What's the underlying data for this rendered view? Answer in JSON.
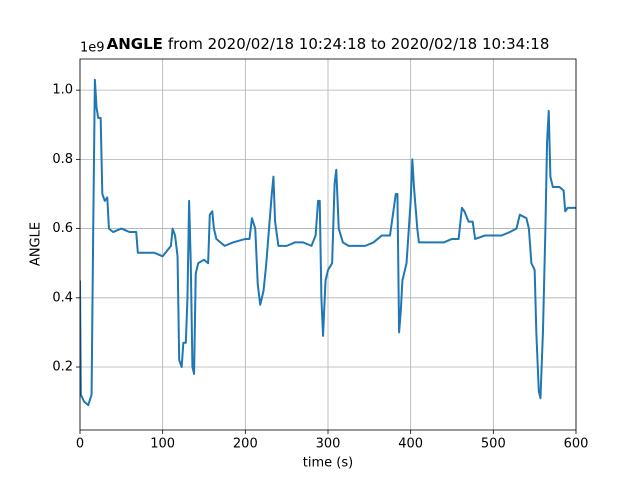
{
  "chart_data": {
    "type": "line",
    "title": {
      "variable": "ANGLE",
      "range": "from 2020/02/18 10:24:18 to 2020/02/18 10:34:18"
    },
    "xlabel": "time (s)",
    "ylabel": "ANGLE",
    "y_offset_label": "1e9",
    "color": "#1f77b4",
    "grid": true,
    "xlim": [
      0,
      600
    ],
    "xticks": [
      0,
      100,
      200,
      300,
      400,
      500,
      600
    ],
    "ylim": [
      0.018,
      1.09
    ],
    "yticks": [
      0.2,
      0.4,
      0.6,
      0.8,
      {
        "value": 1,
        "label": "1.0"
      }
    ],
    "x": [
      0,
      1,
      5,
      10,
      14,
      16,
      18,
      20,
      22,
      25,
      27,
      30,
      33,
      35,
      40,
      50,
      60,
      68,
      70,
      80,
      90,
      100,
      110,
      112,
      115,
      118,
      120,
      123,
      125,
      128,
      130,
      132,
      134,
      136,
      138,
      140,
      143,
      150,
      155,
      157,
      160,
      162,
      165,
      175,
      185,
      200,
      205,
      208,
      212,
      215,
      218,
      222,
      225,
      228,
      232,
      234,
      236,
      240,
      250,
      260,
      270,
      280,
      285,
      288,
      290,
      292,
      294,
      297,
      300,
      305,
      308,
      310,
      313,
      318,
      325,
      335,
      345,
      355,
      365,
      375,
      382,
      384,
      386,
      388,
      390,
      395,
      400,
      402,
      404,
      408,
      410,
      420,
      430,
      440,
      450,
      458,
      462,
      465,
      470,
      475,
      478,
      490,
      500,
      510,
      520,
      528,
      532,
      540,
      543,
      546,
      550,
      552,
      555,
      557,
      560,
      563,
      565,
      567,
      569,
      572,
      580,
      585,
      587,
      590,
      600
    ],
    "values": [
      0.45,
      0.12,
      0.1,
      0.09,
      0.12,
      0.6,
      1.03,
      0.95,
      0.92,
      0.92,
      0.7,
      0.68,
      0.69,
      0.6,
      0.59,
      0.6,
      0.59,
      0.59,
      0.53,
      0.53,
      0.53,
      0.52,
      0.55,
      0.6,
      0.58,
      0.52,
      0.22,
      0.2,
      0.27,
      0.27,
      0.4,
      0.68,
      0.5,
      0.2,
      0.18,
      0.47,
      0.5,
      0.51,
      0.5,
      0.64,
      0.65,
      0.6,
      0.57,
      0.55,
      0.56,
      0.57,
      0.57,
      0.63,
      0.6,
      0.44,
      0.38,
      0.42,
      0.49,
      0.58,
      0.7,
      0.75,
      0.62,
      0.55,
      0.55,
      0.56,
      0.56,
      0.55,
      0.58,
      0.68,
      0.68,
      0.4,
      0.29,
      0.45,
      0.48,
      0.5,
      0.73,
      0.77,
      0.6,
      0.56,
      0.55,
      0.55,
      0.55,
      0.56,
      0.58,
      0.58,
      0.7,
      0.7,
      0.3,
      0.36,
      0.45,
      0.5,
      0.68,
      0.8,
      0.72,
      0.6,
      0.56,
      0.56,
      0.56,
      0.56,
      0.57,
      0.57,
      0.66,
      0.65,
      0.62,
      0.62,
      0.57,
      0.58,
      0.58,
      0.58,
      0.59,
      0.6,
      0.64,
      0.63,
      0.6,
      0.5,
      0.48,
      0.3,
      0.13,
      0.11,
      0.3,
      0.6,
      0.85,
      0.94,
      0.75,
      0.72,
      0.72,
      0.71,
      0.65,
      0.66,
      0.66
    ]
  }
}
